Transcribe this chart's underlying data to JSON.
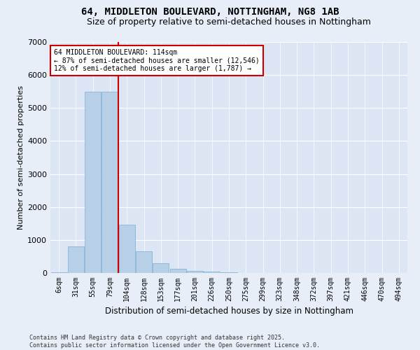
{
  "title": "64, MIDDLETON BOULEVARD, NOTTINGHAM, NG8 1AB",
  "subtitle": "Size of property relative to semi-detached houses in Nottingham",
  "xlabel": "Distribution of semi-detached houses by size in Nottingham",
  "ylabel": "Number of semi-detached properties",
  "categories": [
    "6sqm",
    "31sqm",
    "55sqm",
    "79sqm",
    "104sqm",
    "128sqm",
    "153sqm",
    "177sqm",
    "201sqm",
    "226sqm",
    "250sqm",
    "275sqm",
    "299sqm",
    "323sqm",
    "348sqm",
    "372sqm",
    "397sqm",
    "421sqm",
    "446sqm",
    "470sqm",
    "494sqm"
  ],
  "values": [
    30,
    800,
    5500,
    5500,
    1470,
    650,
    290,
    130,
    70,
    50,
    30,
    0,
    0,
    0,
    0,
    0,
    0,
    0,
    0,
    0,
    0
  ],
  "bar_color": "#b8cfe8",
  "bar_edge_color": "#7aadd4",
  "vline_color": "#cc0000",
  "vline_index": 3.5,
  "annotation_title": "64 MIDDLETON BOULEVARD: 114sqm",
  "annotation_line1": "← 87% of semi-detached houses are smaller (12,546)",
  "annotation_line2": "12% of semi-detached houses are larger (1,787) →",
  "annotation_box_color": "#cc0000",
  "ylim": [
    0,
    7000
  ],
  "yticks": [
    0,
    1000,
    2000,
    3000,
    4000,
    5000,
    6000,
    7000
  ],
  "plot_bg_color": "#dce6f5",
  "fig_bg_color": "#e8eef8",
  "footer_line1": "Contains HM Land Registry data © Crown copyright and database right 2025.",
  "footer_line2": "Contains public sector information licensed under the Open Government Licence v3.0.",
  "title_fontsize": 10,
  "subtitle_fontsize": 9,
  "tick_fontsize": 7,
  "ylabel_fontsize": 8,
  "xlabel_fontsize": 8.5
}
